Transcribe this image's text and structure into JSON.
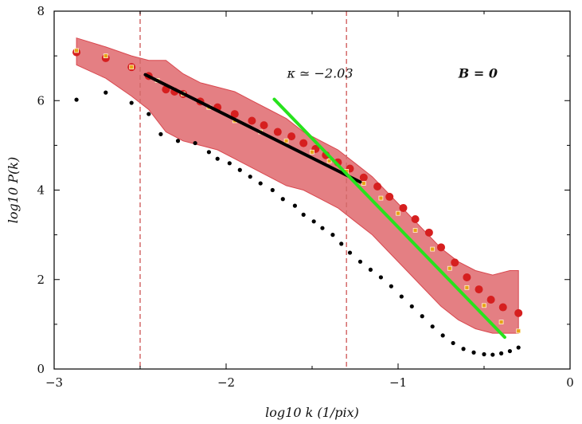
{
  "chart_data": {
    "type": "scatter",
    "title": "",
    "xlabel": "log10 k (1/pix)",
    "ylabel": "log10 P(k)",
    "xlim": [
      -3,
      0
    ],
    "ylim": [
      0,
      8
    ],
    "xticks": [
      -3,
      -2,
      -1,
      0
    ],
    "xtick_labels": [
      "−3",
      "−2",
      "−1",
      "0"
    ],
    "yticks": [
      0,
      2,
      4,
      6,
      8
    ],
    "ytick_labels": [
      "0",
      "2",
      "4",
      "6",
      "8"
    ],
    "grid": false,
    "legend": "none",
    "vlines": [
      -2.5,
      -1.3
    ],
    "annotations": [
      {
        "text": "κ ≃ −2.03",
        "x": -1.5,
        "y": 6.6
      },
      {
        "text": "B = 0",
        "x": -0.6,
        "y": 6.6
      }
    ],
    "series": [
      {
        "kind": "band",
        "color": "#d9484f",
        "x": [
          -2.87,
          -2.7,
          -2.55,
          -2.45,
          -2.35,
          -2.25,
          -2.15,
          -2.05,
          -1.95,
          -1.85,
          -1.75,
          -1.65,
          -1.55,
          -1.45,
          -1.35,
          -1.25,
          -1.15,
          -1.05,
          -0.95,
          -0.85,
          -0.75,
          -0.65,
          -0.55,
          -0.45,
          -0.35,
          -0.3
        ],
        "low": [
          6.8,
          6.5,
          6.1,
          5.8,
          5.3,
          5.1,
          5.0,
          4.9,
          4.7,
          4.5,
          4.3,
          4.1,
          4.0,
          3.8,
          3.6,
          3.3,
          3.0,
          2.6,
          2.2,
          1.8,
          1.4,
          1.1,
          0.9,
          0.8,
          0.8,
          0.8
        ],
        "high": [
          7.4,
          7.2,
          7.0,
          6.9,
          6.9,
          6.6,
          6.4,
          6.3,
          6.2,
          6.0,
          5.8,
          5.6,
          5.3,
          5.1,
          4.9,
          4.6,
          4.3,
          3.9,
          3.5,
          3.1,
          2.7,
          2.4,
          2.2,
          2.1,
          2.2,
          2.2
        ]
      },
      {
        "kind": "circles",
        "color": "#d61f1f",
        "x": [
          -2.87,
          -2.7,
          -2.55,
          -2.45,
          -2.35,
          -2.3,
          -2.25,
          -2.15,
          -2.05,
          -1.95,
          -1.85,
          -1.78,
          -1.7,
          -1.62,
          -1.55,
          -1.48,
          -1.42,
          -1.35,
          -1.28,
          -1.2,
          -1.12,
          -1.05,
          -0.97,
          -0.9,
          -0.82,
          -0.75,
          -0.67,
          -0.6,
          -0.53,
          -0.46,
          -0.39,
          -0.3
        ],
        "y": [
          7.08,
          6.95,
          6.75,
          6.55,
          6.25,
          6.2,
          6.15,
          5.98,
          5.85,
          5.7,
          5.55,
          5.45,
          5.3,
          5.2,
          5.05,
          4.92,
          4.78,
          4.62,
          4.48,
          4.28,
          4.08,
          3.85,
          3.6,
          3.35,
          3.05,
          2.72,
          2.38,
          2.05,
          1.78,
          1.55,
          1.38,
          1.25
        ]
      },
      {
        "kind": "squares",
        "color": "#e8a317",
        "x": [
          -2.87,
          -2.7,
          -2.55,
          -2.4,
          -2.25,
          -2.1,
          -1.95,
          -1.8,
          -1.65,
          -1.5,
          -1.4,
          -1.3,
          -1.2,
          -1.1,
          -1.0,
          -0.9,
          -0.8,
          -0.7,
          -0.6,
          -0.5,
          -0.4,
          -0.3
        ],
        "y": [
          7.12,
          7.0,
          6.75,
          6.45,
          6.15,
          5.85,
          5.55,
          5.3,
          5.1,
          4.85,
          4.65,
          4.42,
          4.15,
          3.82,
          3.48,
          3.1,
          2.68,
          2.25,
          1.82,
          1.42,
          1.05,
          0.85
        ]
      },
      {
        "kind": "black-dots",
        "color": "#000000",
        "x": [
          -2.87,
          -2.7,
          -2.55,
          -2.45,
          -2.38,
          -2.28,
          -2.18,
          -2.1,
          -2.05,
          -1.98,
          -1.92,
          -1.86,
          -1.8,
          -1.73,
          -1.67,
          -1.6,
          -1.55,
          -1.49,
          -1.44,
          -1.38,
          -1.33,
          -1.28,
          -1.22,
          -1.16,
          -1.1,
          -1.04,
          -0.98,
          -0.92,
          -0.86,
          -0.8,
          -0.74,
          -0.68,
          -0.62,
          -0.56,
          -0.5,
          -0.45,
          -0.4,
          -0.35,
          -0.3
        ],
        "y": [
          6.02,
          6.18,
          5.95,
          5.7,
          5.25,
          5.1,
          5.05,
          4.85,
          4.7,
          4.6,
          4.45,
          4.3,
          4.15,
          4.0,
          3.8,
          3.65,
          3.45,
          3.3,
          3.15,
          3.0,
          2.8,
          2.6,
          2.4,
          2.22,
          2.05,
          1.85,
          1.62,
          1.4,
          1.18,
          0.95,
          0.75,
          0.58,
          0.45,
          0.37,
          0.33,
          0.32,
          0.35,
          0.4,
          0.48
        ]
      },
      {
        "kind": "fit-line",
        "color": "#000000",
        "x": [
          -2.47,
          -1.22
        ],
        "y": [
          6.58,
          4.18
        ]
      },
      {
        "kind": "fit-line",
        "color": "#27e21d",
        "x": [
          -1.72,
          -0.38
        ],
        "y": [
          6.03,
          0.71
        ]
      }
    ]
  }
}
